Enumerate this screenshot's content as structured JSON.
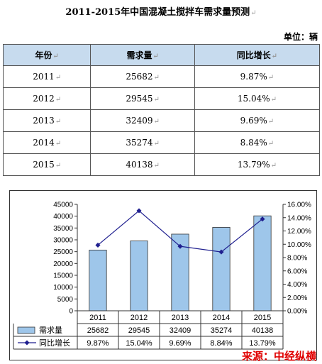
{
  "title": "2011-2015年中国混凝土搅拌车需求量预测",
  "para_mark": "↵",
  "unit_label": "单位：辆",
  "table": {
    "headers": [
      "年份",
      "需求量",
      "同比增长"
    ],
    "rows": [
      [
        "2011",
        "25682",
        "9.87%"
      ],
      [
        "2012",
        "29545",
        "15.04%"
      ],
      [
        "2013",
        "32409",
        "9.69%"
      ],
      [
        "2014",
        "35274",
        "8.84%"
      ],
      [
        "2015",
        "40138",
        "13.79%"
      ]
    ]
  },
  "chart_data": {
    "type": "bar",
    "categories": [
      "2011",
      "2012",
      "2013",
      "2014",
      "2015"
    ],
    "series": [
      {
        "name": "需求量",
        "type": "bar",
        "axis": "left",
        "values": [
          25682,
          29545,
          32409,
          35274,
          40138
        ],
        "color": "#9ec6ea"
      },
      {
        "name": "同比增长",
        "type": "line",
        "axis": "right",
        "values": [
          9.87,
          15.04,
          9.69,
          8.84,
          13.79
        ],
        "color": "#1f1f8f"
      }
    ],
    "y_left": {
      "min": 0,
      "max": 45000,
      "step": 5000
    },
    "y_right": {
      "min": 0,
      "max": 16,
      "step": 2,
      "format": "percent_2dp"
    },
    "data_table_values": {
      "demand": [
        "25682",
        "29545",
        "32409",
        "35274",
        "40138"
      ],
      "growth": [
        "9.87%",
        "15.04%",
        "9.69%",
        "8.84%",
        "13.79%"
      ]
    },
    "legend": "data-table-left",
    "grid": false
  },
  "source": "来源：中经纵横"
}
